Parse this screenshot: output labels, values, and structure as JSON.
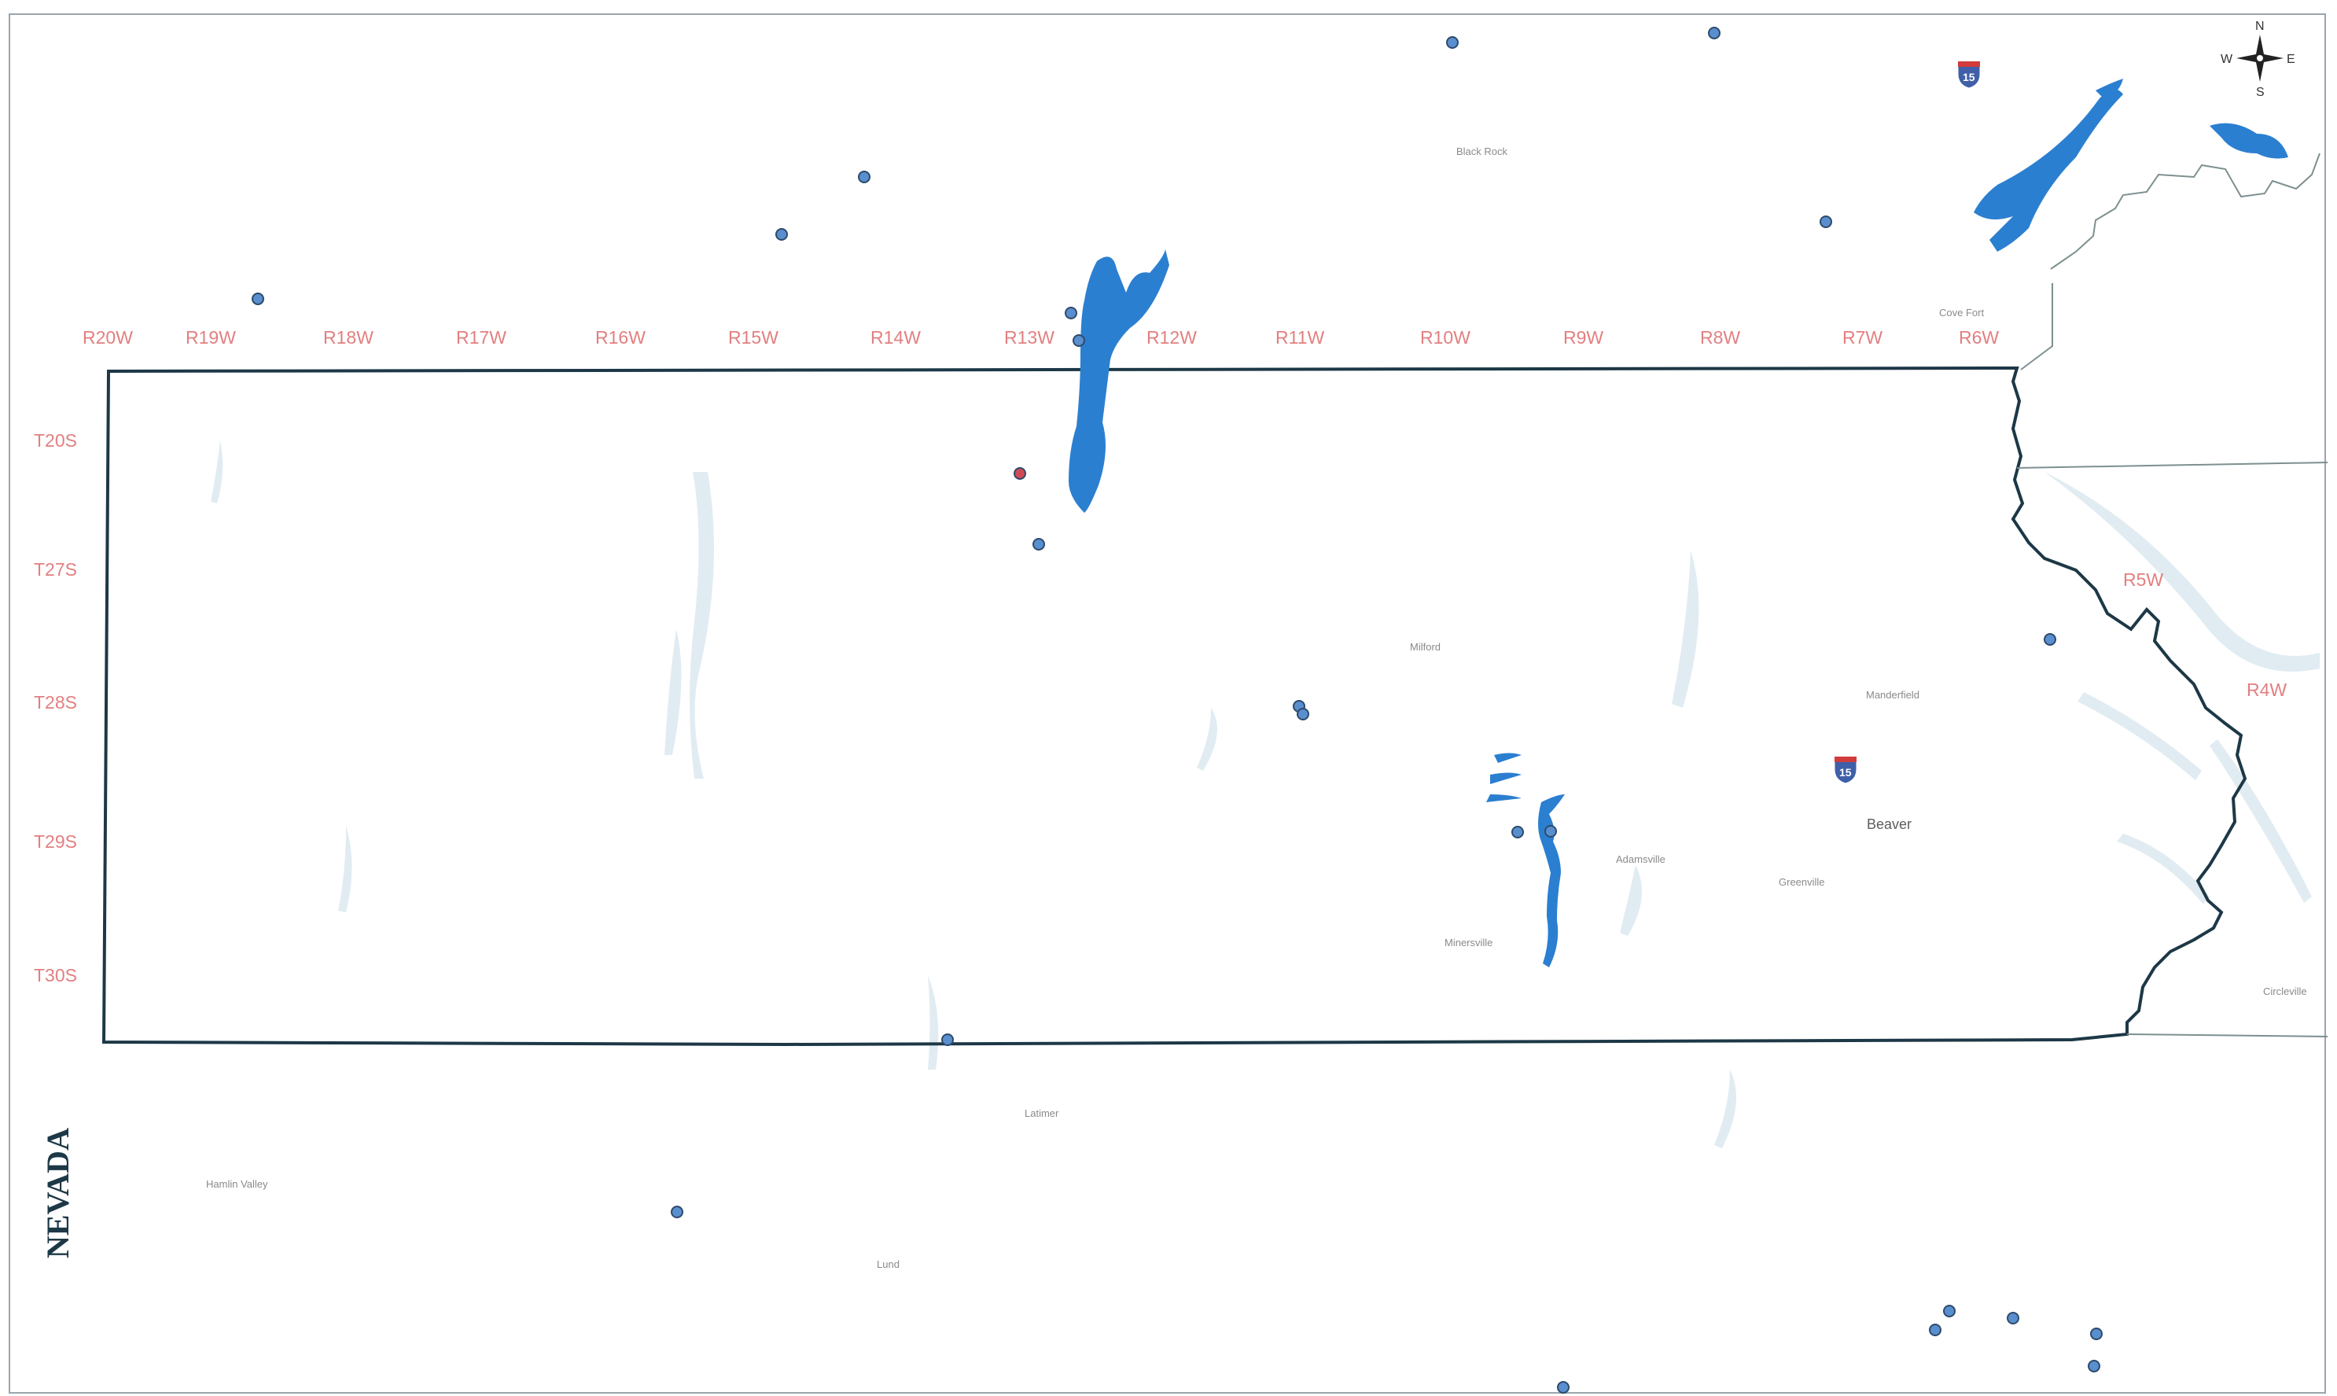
{
  "map": {
    "state_label": "NEVADA",
    "range_labels": [
      "R20W",
      "R19W",
      "R18W",
      "R17W",
      "R16W",
      "R15W",
      "R14W",
      "R13W",
      "R12W",
      "R11W",
      "R10W",
      "R9W",
      "R8W",
      "R7W",
      "R6W"
    ],
    "range_labels_east": [
      "R5W",
      "R4W"
    ],
    "township_labels": [
      "T20S",
      "T27S",
      "T28S",
      "T29S",
      "T30S"
    ],
    "towns": {
      "black_rock": "Black Rock",
      "cove_fort": "Cove Fort",
      "milford": "Milford",
      "manderfield": "Manderfield",
      "beaver": "Beaver",
      "adamsville": "Adamsville",
      "greenville": "Greenville",
      "minersville": "Minersville",
      "circleville": "Circleville",
      "latimer": "Latimer",
      "hamlin_valley": "Hamlin Valley",
      "lund": "Lund"
    },
    "interstate": [
      "15",
      "15"
    ],
    "compass": {
      "n": "N",
      "s": "S",
      "e": "E",
      "w": "W"
    },
    "colors": {
      "boundary": "#1d3846",
      "water": "#2b7fd0",
      "point": "#5a8fcf",
      "point_highlight": "#d04a55",
      "label": "#e27f80"
    }
  }
}
